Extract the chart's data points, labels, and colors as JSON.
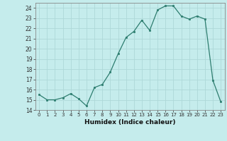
{
  "x": [
    0,
    1,
    2,
    3,
    4,
    5,
    6,
    7,
    8,
    9,
    10,
    11,
    12,
    13,
    14,
    15,
    16,
    17,
    18,
    19,
    20,
    21,
    22,
    23
  ],
  "y": [
    15.5,
    15.0,
    15.0,
    15.2,
    15.6,
    15.1,
    14.4,
    16.2,
    16.5,
    17.7,
    19.5,
    21.1,
    21.7,
    22.8,
    21.8,
    23.8,
    24.2,
    24.2,
    23.2,
    22.9,
    23.2,
    22.9,
    16.9,
    14.8
  ],
  "xlabel": "Humidex (Indice chaleur)",
  "xlim": [
    -0.5,
    23.5
  ],
  "ylim": [
    14,
    24.5
  ],
  "yticks": [
    14,
    15,
    16,
    17,
    18,
    19,
    20,
    21,
    22,
    23,
    24
  ],
  "xticks": [
    0,
    1,
    2,
    3,
    4,
    5,
    6,
    7,
    8,
    9,
    10,
    11,
    12,
    13,
    14,
    15,
    16,
    17,
    18,
    19,
    20,
    21,
    22,
    23
  ],
  "line_color": "#2d7d6f",
  "marker_color": "#2d7d6f",
  "bg_color": "#c5ecec",
  "grid_color": "#aed8d8",
  "spine_color": "#888888"
}
